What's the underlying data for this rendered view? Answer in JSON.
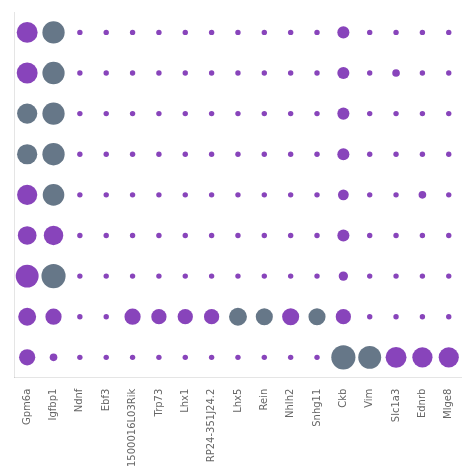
{
  "chart_data": {
    "type": "bubble",
    "categories": [
      "Gpm6a",
      "Igfbp1",
      "Ndnf",
      "Ebf3",
      "1500016L03Rik",
      "Trp73",
      "Lhx1",
      "RP24-351J24.2",
      "Lhx5",
      "Rein",
      "Nhlh2",
      "Snhg11",
      "Ckb",
      "Vim",
      "Slc1a3",
      "Ednrb",
      "Mlge8"
    ],
    "series": [
      {
        "values": [
          9,
          2,
          1,
          1,
          1,
          1,
          1,
          1,
          1,
          1,
          1,
          1,
          20,
          18,
          15,
          14,
          14
        ],
        "colors": [
          "#8844BB",
          "#8844BB",
          "#8844BB",
          "#8844BB",
          "#8844BB",
          "#8844BB",
          "#8844BB",
          "#8844BB",
          "#8844BB",
          "#8844BB",
          "#8844BB",
          "#8844BB",
          "#667788",
          "#667788",
          "#8844BB",
          "#8844BB",
          "#8844BB"
        ]
      },
      {
        "values": [
          11,
          9,
          1,
          1,
          9,
          8,
          8,
          8,
          11,
          10,
          10,
          10,
          8,
          1,
          1,
          1,
          1
        ],
        "colors": [
          "#8844BB",
          "#8844BB",
          "#8844BB",
          "#8844BB",
          "#8844BB",
          "#8844BB",
          "#8844BB",
          "#8844BB",
          "#667788",
          "#667788",
          "#8844BB",
          "#667788",
          "#8844BB",
          "#8844BB",
          "#8844BB",
          "#8844BB",
          "#8844BB"
        ]
      },
      {
        "values": [
          18,
          20,
          1,
          1,
          1,
          1,
          1,
          1,
          1,
          1,
          1,
          1,
          3,
          1,
          1,
          1,
          1
        ],
        "colors": [
          "#8844BB",
          "#667788",
          "#8844BB",
          "#8844BB",
          "#8844BB",
          "#8844BB",
          "#8844BB",
          "#8844BB",
          "#8844BB",
          "#8844BB",
          "#8844BB",
          "#8844BB",
          "#8844BB",
          "#8844BB",
          "#8844BB",
          "#8844BB",
          "#8844BB"
        ]
      },
      {
        "values": [
          12,
          13,
          1,
          1,
          1,
          1,
          1,
          1,
          1,
          1,
          1,
          1,
          5,
          1,
          1,
          1,
          1
        ],
        "colors": [
          "#8844BB",
          "#8844BB",
          "#8844BB",
          "#8844BB",
          "#8844BB",
          "#8844BB",
          "#8844BB",
          "#8844BB",
          "#8844BB",
          "#8844BB",
          "#8844BB",
          "#8844BB",
          "#8844BB",
          "#8844BB",
          "#8844BB",
          "#8844BB",
          "#8844BB"
        ]
      },
      {
        "values": [
          14,
          16,
          1,
          1,
          1,
          1,
          1,
          1,
          1,
          1,
          1,
          1,
          4,
          1,
          1,
          2,
          1
        ],
        "colors": [
          "#8844BB",
          "#667788",
          "#8844BB",
          "#8844BB",
          "#8844BB",
          "#8844BB",
          "#8844BB",
          "#8844BB",
          "#8844BB",
          "#8844BB",
          "#8844BB",
          "#8844BB",
          "#8844BB",
          "#8844BB",
          "#8844BB",
          "#8844BB",
          "#8844BB"
        ]
      },
      {
        "values": [
          14,
          17,
          1,
          1,
          1,
          1,
          1,
          1,
          1,
          1,
          1,
          1,
          5,
          1,
          1,
          1,
          1
        ],
        "colors": [
          "#667788",
          "#667788",
          "#8844BB",
          "#8844BB",
          "#8844BB",
          "#8844BB",
          "#8844BB",
          "#8844BB",
          "#8844BB",
          "#8844BB",
          "#8844BB",
          "#8844BB",
          "#8844BB",
          "#8844BB",
          "#8844BB",
          "#8844BB",
          "#8844BB"
        ]
      },
      {
        "values": [
          14,
          17,
          1,
          1,
          1,
          1,
          1,
          1,
          1,
          1,
          1,
          1,
          5,
          1,
          1,
          1,
          1
        ],
        "colors": [
          "#667788",
          "#667788",
          "#8844BB",
          "#8844BB",
          "#8844BB",
          "#8844BB",
          "#8844BB",
          "#8844BB",
          "#8844BB",
          "#8844BB",
          "#8844BB",
          "#8844BB",
          "#8844BB",
          "#8844BB",
          "#8844BB",
          "#8844BB",
          "#8844BB"
        ]
      },
      {
        "values": [
          15,
          17,
          1,
          1,
          1,
          1,
          1,
          1,
          1,
          1,
          1,
          1,
          5,
          1,
          2,
          1,
          1
        ],
        "colors": [
          "#8844BB",
          "#667788",
          "#8844BB",
          "#8844BB",
          "#8844BB",
          "#8844BB",
          "#8844BB",
          "#8844BB",
          "#8844BB",
          "#8844BB",
          "#8844BB",
          "#8844BB",
          "#8844BB",
          "#8844BB",
          "#8844BB",
          "#8844BB",
          "#8844BB"
        ]
      },
      {
        "values": [
          15,
          17,
          1,
          1,
          1,
          1,
          1,
          1,
          1,
          1,
          1,
          1,
          5,
          1,
          1,
          1,
          1
        ],
        "colors": [
          "#8844BB",
          "#667788",
          "#8844BB",
          "#8844BB",
          "#8844BB",
          "#8844BB",
          "#8844BB",
          "#8844BB",
          "#8844BB",
          "#8844BB",
          "#8844BB",
          "#8844BB",
          "#8844BB",
          "#8844BB",
          "#8844BB",
          "#8844BB",
          "#8844BB"
        ]
      }
    ],
    "grid": false,
    "tick_labels": "x"
  }
}
